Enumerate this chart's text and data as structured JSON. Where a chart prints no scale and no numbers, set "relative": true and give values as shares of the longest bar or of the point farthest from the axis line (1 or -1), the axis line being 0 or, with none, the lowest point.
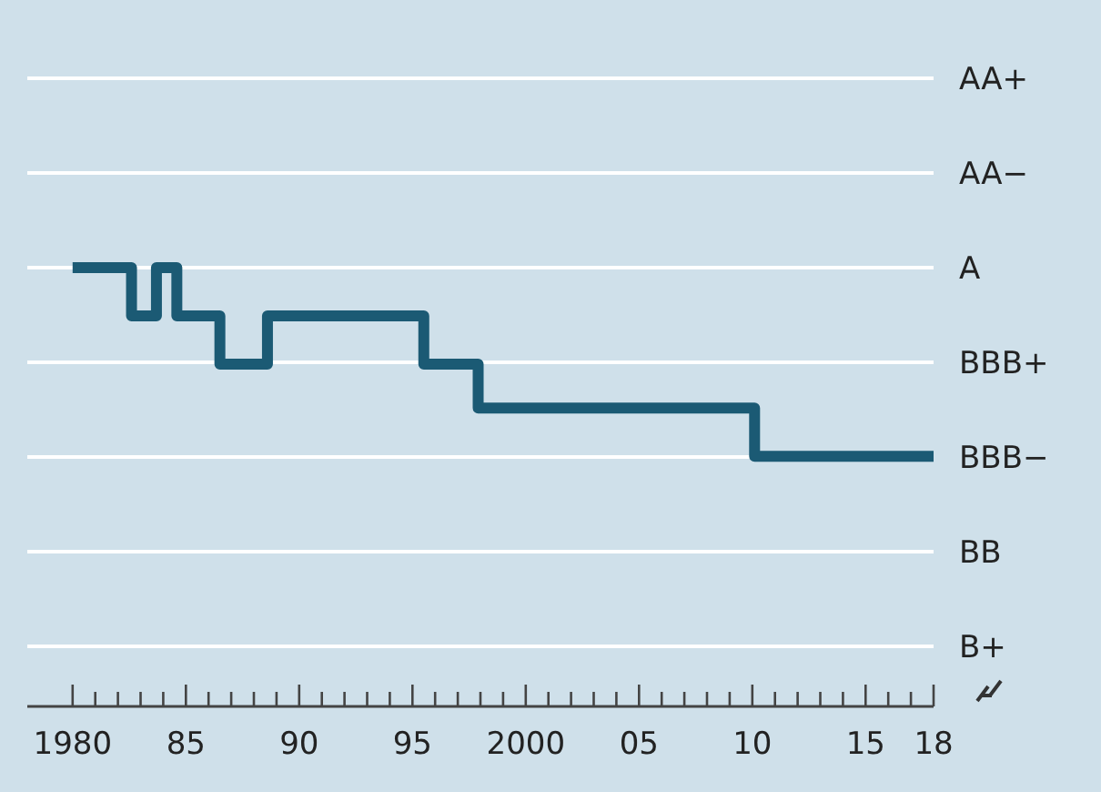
{
  "chart_data": {
    "type": "step",
    "x": [
      1980,
      1982.6,
      1983.7,
      1984.6,
      1986.5,
      1988.6,
      1995.5,
      1997.9,
      2010.1,
      2018
    ],
    "relative": true,
    "series": [
      {
        "color": "#1b5a74",
        "values": [
          1,
          0.89,
          1,
          0.89,
          0.78,
          0.89,
          0.78,
          0.68,
          0.57,
          0.57
        ]
      }
    ],
    "annotations": [
      "AA+",
      "AA−",
      "A",
      "BBB+",
      "BBB−",
      "BB",
      "B+"
    ],
    "xlim": [
      1978,
      2018
    ],
    "xticks": [
      {
        "value": 1980,
        "label": "1980"
      },
      {
        "value": 1981,
        "label": null
      },
      {
        "value": 1982,
        "label": null
      },
      {
        "value": 1983,
        "label": null
      },
      {
        "value": 1984,
        "label": null
      },
      {
        "value": 1985,
        "label": "85"
      },
      {
        "value": 1986,
        "label": null
      },
      {
        "value": 1987,
        "label": null
      },
      {
        "value": 1988,
        "label": null
      },
      {
        "value": 1989,
        "label": null
      },
      {
        "value": 1990,
        "label": "90"
      },
      {
        "value": 1991,
        "label": null
      },
      {
        "value": 1992,
        "label": null
      },
      {
        "value": 1993,
        "label": null
      },
      {
        "value": 1994,
        "label": null
      },
      {
        "value": 1995,
        "label": "95"
      },
      {
        "value": 1996,
        "label": null
      },
      {
        "value": 1997,
        "label": null
      },
      {
        "value": 1998,
        "label": null
      },
      {
        "value": 1999,
        "label": null
      },
      {
        "value": 2000,
        "label": "2000"
      },
      {
        "value": 2001,
        "label": null
      },
      {
        "value": 2002,
        "label": null
      },
      {
        "value": 2003,
        "label": null
      },
      {
        "value": 2004,
        "label": null
      },
      {
        "value": 2005,
        "label": "05"
      },
      {
        "value": 2006,
        "label": null
      },
      {
        "value": 2007,
        "label": null
      },
      {
        "value": 2008,
        "label": null
      },
      {
        "value": 2009,
        "label": null
      },
      {
        "value": 2010,
        "label": "10"
      },
      {
        "value": 2011,
        "label": null
      },
      {
        "value": 2012,
        "label": null
      },
      {
        "value": 2013,
        "label": null
      },
      {
        "value": 2014,
        "label": null
      },
      {
        "value": 2015,
        "label": "15"
      },
      {
        "value": 2016,
        "label": null
      },
      {
        "value": 2017,
        "label": null
      },
      {
        "value": 2018,
        "label": "18"
      }
    ],
    "grid": true,
    "line_style": "solid"
  }
}
